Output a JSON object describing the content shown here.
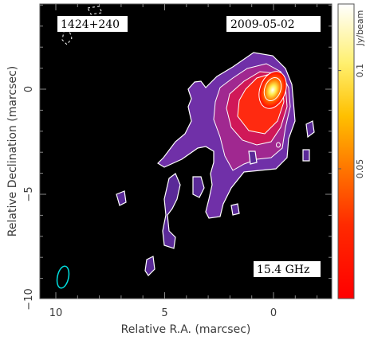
{
  "labels": {
    "source_name": "1424+240",
    "date": "2009-05-02",
    "frequency": "15.4 GHz",
    "xlabel": "Relative R.A. (marcsec)",
    "ylabel": "Relative Declination (marcsec)",
    "colorbar_label": "Jy/beam"
  },
  "x_ticks": [
    {
      "value": 10,
      "label": "10"
    },
    {
      "value": 5,
      "label": "5"
    },
    {
      "value": 0,
      "label": "0"
    }
  ],
  "y_ticks": [
    {
      "value": 0,
      "label": "0"
    },
    {
      "value": -5,
      "label": "−5"
    },
    {
      "value": -10,
      "label": "−10"
    }
  ],
  "colorbar_ticks": [
    {
      "value": 0.1,
      "label": "0.1"
    },
    {
      "value": 0.05,
      "label": "0.05"
    }
  ],
  "colors": {
    "background": "#000000",
    "contour": "#ffffff",
    "beam": "#00e0e0"
  }
}
